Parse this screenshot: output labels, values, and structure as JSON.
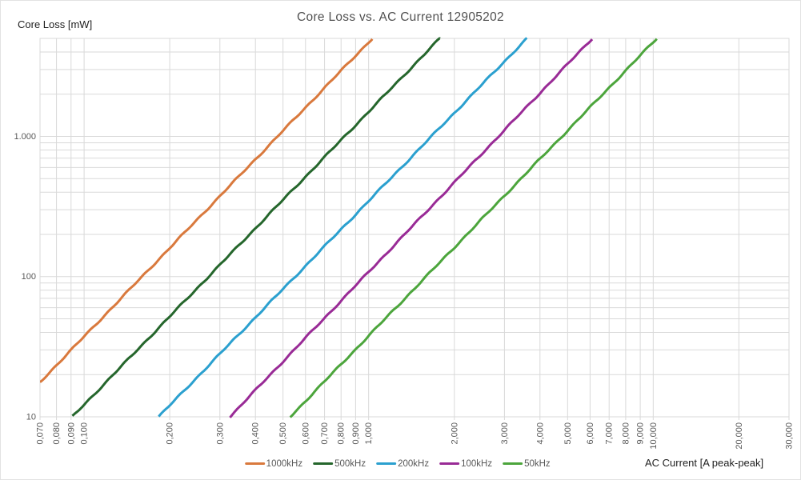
{
  "title": "Core Loss vs. AC Current 12905202",
  "y_axis": {
    "title": "Core Loss [mW]",
    "scale": "log",
    "min": 10,
    "max": 5000,
    "tick_labels": [
      {
        "value": 10,
        "label": "10"
      },
      {
        "value": 100,
        "label": "100"
      },
      {
        "value": 1000,
        "label": "1.000"
      }
    ]
  },
  "x_axis": {
    "title": "AC Current [A peak-peak]",
    "scale": "log",
    "min": 0.07,
    "max": 30,
    "ticks": [
      {
        "value": 0.07,
        "label": "0,070"
      },
      {
        "value": 0.08,
        "label": "0,080"
      },
      {
        "value": 0.09,
        "label": "0,090"
      },
      {
        "value": 0.1,
        "label": "0,100"
      },
      {
        "value": 0.2,
        "label": "0,200"
      },
      {
        "value": 0.3,
        "label": "0,300"
      },
      {
        "value": 0.4,
        "label": "0,400"
      },
      {
        "value": 0.5,
        "label": "0,500"
      },
      {
        "value": 0.6,
        "label": "0,600"
      },
      {
        "value": 0.7,
        "label": "0,700"
      },
      {
        "value": 0.8,
        "label": "0,800"
      },
      {
        "value": 0.9,
        "label": "0,900"
      },
      {
        "value": 1,
        "label": "1,000"
      },
      {
        "value": 2,
        "label": "2,000"
      },
      {
        "value": 3,
        "label": "3,000"
      },
      {
        "value": 4,
        "label": "4,000"
      },
      {
        "value": 5,
        "label": "5,000"
      },
      {
        "value": 6,
        "label": "6,000"
      },
      {
        "value": 7,
        "label": "7,000"
      },
      {
        "value": 8,
        "label": "8,000"
      },
      {
        "value": 9,
        "label": "9,000"
      },
      {
        "value": 10,
        "label": "10,000"
      },
      {
        "value": 20,
        "label": "20,000"
      },
      {
        "value": 30,
        "label": "30,000"
      }
    ]
  },
  "colors": {
    "grid": "#d9d9d9",
    "tick_text": "#595959",
    "title_text": "#515151"
  },
  "chart_data": {
    "type": "line",
    "title": "Core Loss vs. AC Current 12905202",
    "xlabel": "AC Current [A peak-peak]",
    "ylabel": "Core Loss [mW]",
    "x_scale": "log",
    "y_scale": "log",
    "xlim": [
      0.07,
      30
    ],
    "ylim": [
      10,
      5000
    ],
    "grid": true,
    "legend_position": "bottom",
    "series": [
      {
        "name": "1000kHz",
        "color": "#d9793d",
        "power_law": {
          "coeff_at_1A": 4700,
          "exponent": 2.1
        },
        "points": [
          [
            0.07,
            17.6
          ],
          [
            0.1,
            37
          ],
          [
            0.2,
            160
          ],
          [
            0.5,
            1100
          ],
          [
            1.0,
            4700
          ],
          [
            1.03,
            5000
          ]
        ]
      },
      {
        "name": "500kHz",
        "color": "#25662c",
        "power_law": {
          "coeff_at_1A": 1500,
          "exponent": 2.09
        },
        "points": [
          [
            0.091,
            10
          ],
          [
            0.2,
            52
          ],
          [
            0.5,
            352
          ],
          [
            1.0,
            1500
          ],
          [
            1.78,
            5000
          ]
        ]
      },
      {
        "name": "200kHz",
        "color": "#2ba0cf",
        "power_law": {
          "coeff_at_1A": 346,
          "exponent": 2.086
        },
        "points": [
          [
            0.183,
            10
          ],
          [
            0.5,
            82
          ],
          [
            1.0,
            346
          ],
          [
            2.0,
            1470
          ],
          [
            3.6,
            5000
          ]
        ]
      },
      {
        "name": "100kHz",
        "color": "#992b96",
        "power_law": {
          "coeff_at_1A": 108,
          "exponent": 2.12
        },
        "points": [
          [
            0.326,
            10
          ],
          [
            1.0,
            108
          ],
          [
            2.0,
            470
          ],
          [
            5.0,
            3270
          ],
          [
            6.1,
            5000
          ]
        ]
      },
      {
        "name": "50kHz",
        "color": "#4ca53c",
        "power_law": {
          "coeff_at_1A": 37.8,
          "exponent": 2.095
        },
        "points": [
          [
            0.53,
            10
          ],
          [
            1.0,
            38
          ],
          [
            2.0,
            161
          ],
          [
            5.0,
            1100
          ],
          [
            10.3,
            5000
          ]
        ]
      }
    ]
  }
}
